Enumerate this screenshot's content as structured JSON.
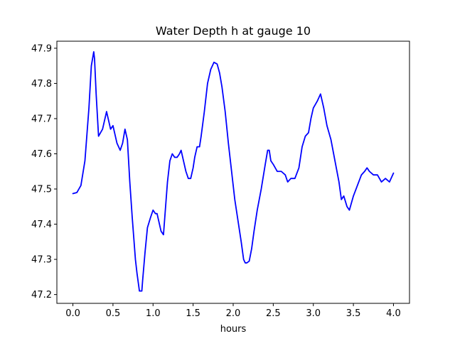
{
  "chart_data": {
    "type": "line",
    "title": "Water Depth h at gauge 10",
    "xlabel": "hours",
    "ylabel": "",
    "xlim": [
      -0.2,
      4.2
    ],
    "ylim": [
      47.175,
      47.92
    ],
    "xticks": [
      0.0,
      0.5,
      1.0,
      1.5,
      2.0,
      2.5,
      3.0,
      3.5,
      4.0
    ],
    "xtick_labels": [
      "0.0",
      "0.5",
      "1.0",
      "1.5",
      "2.0",
      "2.5",
      "3.0",
      "3.5",
      "4.0"
    ],
    "yticks": [
      47.2,
      47.3,
      47.4,
      47.5,
      47.6,
      47.7,
      47.8,
      47.9
    ],
    "ytick_labels": [
      "47.2",
      "47.3",
      "47.4",
      "47.5",
      "47.6",
      "47.7",
      "47.8",
      "47.9"
    ],
    "grid": false,
    "series": [
      {
        "color": "#0000ff",
        "x": [
          0.0,
          0.05,
          0.1,
          0.15,
          0.2,
          0.23,
          0.26,
          0.27,
          0.29,
          0.32,
          0.37,
          0.42,
          0.44,
          0.47,
          0.5,
          0.52,
          0.55,
          0.59,
          0.62,
          0.65,
          0.68,
          0.71,
          0.74,
          0.78,
          0.8,
          0.83,
          0.86,
          0.87,
          0.9,
          0.93,
          0.97,
          1.0,
          1.03,
          1.05,
          1.08,
          1.1,
          1.13,
          1.15,
          1.18,
          1.21,
          1.24,
          1.27,
          1.3,
          1.33,
          1.35,
          1.38,
          1.41,
          1.44,
          1.47,
          1.5,
          1.52,
          1.55,
          1.58,
          1.6,
          1.64,
          1.68,
          1.72,
          1.76,
          1.8,
          1.83,
          1.86,
          1.9,
          1.94,
          1.98,
          2.02,
          2.06,
          2.1,
          2.13,
          2.15,
          2.17,
          2.2,
          2.23,
          2.26,
          2.3,
          2.35,
          2.4,
          2.43,
          2.45,
          2.47,
          2.5,
          2.55,
          2.6,
          2.65,
          2.68,
          2.72,
          2.77,
          2.82,
          2.86,
          2.9,
          2.94,
          2.97,
          3.0,
          3.05,
          3.09,
          3.13,
          3.17,
          3.22,
          3.27,
          3.32,
          3.35,
          3.38,
          3.42,
          3.45,
          3.5,
          3.55,
          3.6,
          3.64,
          3.67,
          3.7,
          3.75,
          3.8,
          3.85,
          3.9,
          3.95,
          4.0
        ],
        "y": [
          47.487,
          47.49,
          47.51,
          47.58,
          47.73,
          47.85,
          47.89,
          47.87,
          47.77,
          47.65,
          47.67,
          47.72,
          47.7,
          47.67,
          47.68,
          47.66,
          47.63,
          47.61,
          47.63,
          47.67,
          47.64,
          47.52,
          47.42,
          47.3,
          47.26,
          47.21,
          47.21,
          47.24,
          47.32,
          47.39,
          47.42,
          47.44,
          47.43,
          47.43,
          47.4,
          47.38,
          47.37,
          47.43,
          47.52,
          47.58,
          47.6,
          47.59,
          47.59,
          47.6,
          47.61,
          47.58,
          47.55,
          47.53,
          47.53,
          47.56,
          47.59,
          47.62,
          47.62,
          47.65,
          47.72,
          47.8,
          47.84,
          47.86,
          47.855,
          47.83,
          47.79,
          47.72,
          47.63,
          47.55,
          47.47,
          47.41,
          47.35,
          47.3,
          47.29,
          47.29,
          47.295,
          47.33,
          47.38,
          47.44,
          47.5,
          47.57,
          47.61,
          47.61,
          47.58,
          47.57,
          47.55,
          47.55,
          47.54,
          47.52,
          47.53,
          47.53,
          47.56,
          47.62,
          47.65,
          47.66,
          47.7,
          47.73,
          47.75,
          47.77,
          47.73,
          47.68,
          47.64,
          47.58,
          47.52,
          47.47,
          47.48,
          47.45,
          47.44,
          47.48,
          47.51,
          47.54,
          47.55,
          47.56,
          47.55,
          47.54,
          47.54,
          47.52,
          47.53,
          47.52,
          47.545
        ]
      }
    ]
  }
}
